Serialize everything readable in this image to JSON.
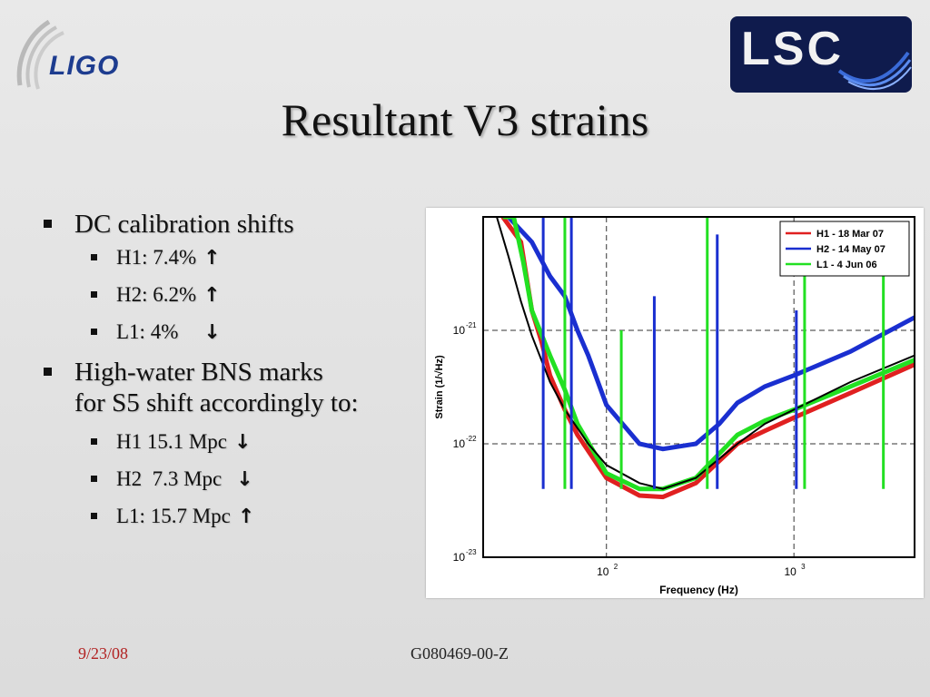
{
  "header": {
    "ligo_logo_text": "LIGO",
    "lsc_logo_text": "LSC",
    "title": "Resultant V3 strains"
  },
  "bullets": {
    "dc_heading": "DC calibration shifts",
    "dc_items": [
      {
        "label": "H1: 7.4%",
        "arrow": "↑",
        "direction": "up"
      },
      {
        "label": "H2: 6.2%",
        "arrow": "↑",
        "direction": "up"
      },
      {
        "label": "L1: 4%",
        "arrow": "↓",
        "direction": "down"
      }
    ],
    "bns_heading_line1": "High-water BNS marks",
    "bns_heading_line2": "for S5 shift accordingly to:",
    "bns_items": [
      {
        "label": "H1 15.1 Mpc",
        "arrow": "↓",
        "direction": "down"
      },
      {
        "label": "H2  7.3 Mpc",
        "arrow": "↓",
        "direction": "down"
      },
      {
        "label": "L1: 15.7 Mpc",
        "arrow": "↑",
        "direction": "up"
      }
    ]
  },
  "footer": {
    "date": "9/23/08",
    "doc_id": "G080469-00-Z"
  },
  "colors": {
    "h1": "#e02020",
    "h2": "#1a2fd0",
    "l1": "#22e022",
    "reference": "#000000",
    "footer_date": "#b22222"
  },
  "chart_data": {
    "type": "line",
    "xscale": "log",
    "yscale": "log",
    "xlim": [
      22,
      4400
    ],
    "ylim": [
      1e-23,
      1e-20
    ],
    "xlabel": "Frequency (Hz)",
    "ylabel": "Strain (1/√Hz)",
    "x_ticks": [
      {
        "value": 100,
        "base": "10",
        "exp": "2"
      },
      {
        "value": 1000,
        "base": "10",
        "exp": "3"
      }
    ],
    "y_ticks": [
      {
        "value": 1e-23,
        "base": "10",
        "exp": "-23"
      },
      {
        "value": 1e-22,
        "base": "10",
        "exp": "-22"
      },
      {
        "value": 1e-21,
        "base": "10",
        "exp": "-21"
      }
    ],
    "grid": "dashed",
    "legend_position": "top-right",
    "legend": [
      "H1 - 18 Mar 07",
      "H2 - 14 May 07",
      "L1 - 4 Jun 06"
    ],
    "series": [
      {
        "name": "H1 - 18 Mar 07",
        "color": "#e02020",
        "x": [
          28,
          35,
          40,
          45,
          50,
          60,
          70,
          100,
          150,
          200,
          300,
          500,
          700,
          1000,
          2000,
          4400
        ],
        "y": [
          1e-20,
          6e-21,
          1.5e-21,
          8e-22,
          4e-22,
          2e-22,
          1.2e-22,
          5e-23,
          3.5e-23,
          3.4e-23,
          4.5e-23,
          1e-22,
          1.3e-22,
          1.7e-22,
          2.8e-22,
          5e-22
        ]
      },
      {
        "name": "H2 - 14 May 07",
        "color": "#1a2fd0",
        "x": [
          30,
          40,
          50,
          60,
          70,
          80,
          100,
          150,
          200,
          300,
          400,
          500,
          700,
          1000,
          2000,
          4400
        ],
        "y": [
          1e-20,
          6e-21,
          3e-21,
          2e-21,
          1e-21,
          6e-22,
          2.2e-22,
          1e-22,
          9e-23,
          1e-22,
          1.5e-22,
          2.3e-22,
          3.2e-22,
          4e-22,
          6.5e-22,
          1.3e-21
        ]
      },
      {
        "name": "L1 - 4 Jun 06",
        "color": "#22e022",
        "x": [
          28,
          32,
          36,
          40,
          50,
          60,
          70,
          100,
          150,
          200,
          300,
          500,
          700,
          1000,
          2000,
          4400
        ],
        "y": [
          1e-20,
          1e-20,
          4e-21,
          1.5e-21,
          6e-22,
          3e-22,
          1.5e-22,
          5.5e-23,
          4e-23,
          4e-23,
          5e-23,
          1.2e-22,
          1.6e-22,
          2e-22,
          3.2e-22,
          5.5e-22
        ]
      },
      {
        "name": "",
        "color": "#000000",
        "x": [
          26,
          30,
          35,
          40,
          50,
          60,
          80,
          100,
          150,
          200,
          300,
          500,
          700,
          1000,
          2000,
          4400
        ],
        "y": [
          1e-20,
          4.5e-21,
          1.8e-21,
          9e-22,
          3.5e-22,
          2e-22,
          1e-22,
          6.5e-23,
          4.5e-23,
          4e-23,
          5e-23,
          1e-22,
          1.5e-22,
          2e-22,
          3.5e-22,
          6e-22
        ]
      }
    ],
    "spikes": [
      {
        "x": 46,
        "y": 1e-20,
        "color": "#1a2fd0"
      },
      {
        "x": 60,
        "y": 1e-20,
        "color": "#22e022"
      },
      {
        "x": 65,
        "y": 1e-20,
        "color": "#1a2fd0"
      },
      {
        "x": 120,
        "y": 1e-21,
        "color": "#22e022"
      },
      {
        "x": 180,
        "y": 2e-21,
        "color": "#1a2fd0"
      },
      {
        "x": 345,
        "y": 1e-20,
        "color": "#22e022"
      },
      {
        "x": 390,
        "y": 7e-21,
        "color": "#1a2fd0"
      },
      {
        "x": 1030,
        "y": 1.5e-21,
        "color": "#1a2fd0"
      },
      {
        "x": 1140,
        "y": 3e-21,
        "color": "#22e022"
      },
      {
        "x": 3000,
        "y": 3e-21,
        "color": "#22e022"
      }
    ]
  }
}
